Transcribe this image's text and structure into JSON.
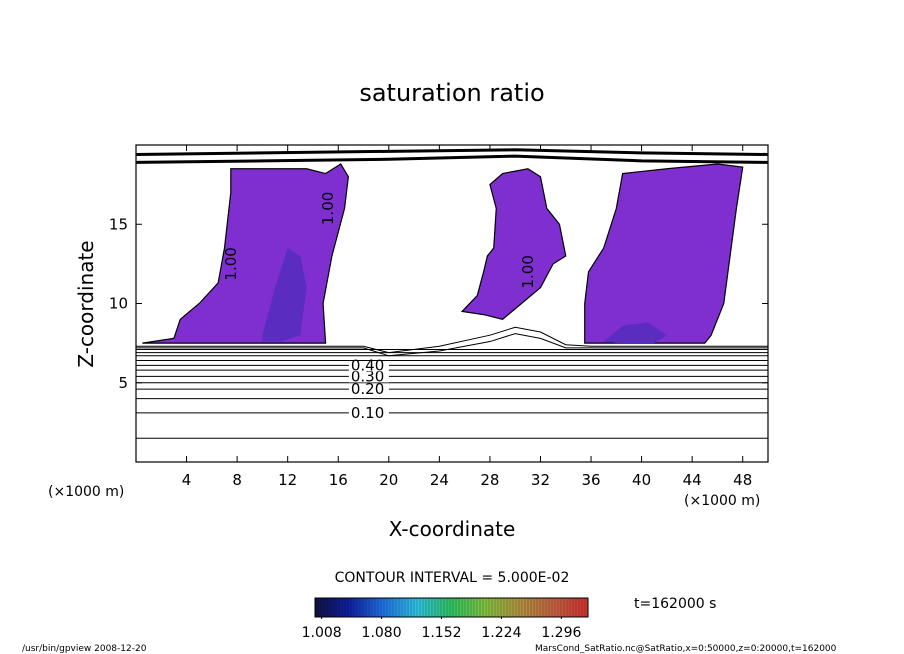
{
  "chart_data": {
    "type": "contour",
    "title": "saturation ratio",
    "xlabel": "X-coordinate",
    "ylabel": "Z-coordinate",
    "x_unit": "(×1000 m)",
    "xlim": [
      0,
      50
    ],
    "ylim": [
      0,
      20
    ],
    "xticks": [
      4,
      8,
      12,
      16,
      20,
      24,
      28,
      32,
      36,
      40,
      44,
      48
    ],
    "yticks": [
      5,
      10,
      15
    ],
    "regions": [
      {
        "color": "#7f2fd0",
        "x": [
          0.5,
          3,
          3.5,
          5,
          6.5,
          7,
          7.5,
          7.5,
          11,
          13.5,
          15,
          16.2,
          16.8,
          16.5,
          15.5,
          14.8,
          15,
          9
        ],
        "z": [
          7.5,
          7.8,
          9,
          10,
          11.3,
          13.5,
          17,
          18.5,
          18.5,
          18.5,
          18.2,
          18.8,
          18,
          16,
          13,
          10,
          7.5,
          7.5
        ]
      },
      {
        "color": "#7f2fd0",
        "x": [
          25.8,
          27,
          27.5,
          27.8,
          28.3,
          28.5,
          28,
          29,
          31,
          32,
          32.5,
          33.5,
          34,
          33,
          32,
          30.5,
          29,
          27.5
        ],
        "z": [
          9.5,
          10.5,
          12,
          13,
          13.5,
          16,
          17.5,
          18.2,
          18.5,
          18,
          16,
          15,
          13,
          12.5,
          11,
          10,
          9,
          9.3
        ]
      },
      {
        "color": "#7f2fd0",
        "x": [
          35.5,
          35.5,
          35.8,
          37,
          38,
          38.5,
          42,
          46,
          48,
          47.5,
          47,
          46.5,
          45.5,
          45
        ],
        "z": [
          7.5,
          10,
          12,
          13.5,
          16,
          18.2,
          18.5,
          18.8,
          18.6,
          16,
          13,
          10,
          8,
          7.5
        ]
      },
      {
        "color": "#5a2cc0",
        "x": [
          10,
          11,
          12,
          13,
          13.5,
          13,
          11.5,
          10
        ],
        "z": [
          8,
          11,
          13.5,
          13,
          11,
          8,
          7.6,
          7.6
        ]
      },
      {
        "color": "#5a2cc0",
        "x": [
          37,
          38.5,
          40.5,
          42,
          41,
          38
        ],
        "z": [
          7.6,
          8.6,
          8.8,
          8,
          7.5,
          7.5
        ]
      }
    ],
    "contours": [
      {
        "level": 0.05,
        "x": [
          0,
          50
        ],
        "z": [
          1.5,
          1.5
        ]
      },
      {
        "level": 0.1,
        "label": "0.10",
        "x": [
          0,
          50
        ],
        "z": [
          3.1,
          3.1
        ]
      },
      {
        "level": 0.15,
        "x": [
          0,
          50
        ],
        "z": [
          4.0,
          4.0
        ]
      },
      {
        "level": 0.2,
        "label": "0.20",
        "x": [
          0,
          50
        ],
        "z": [
          4.6,
          4.6
        ]
      },
      {
        "level": 0.25,
        "x": [
          0,
          50
        ],
        "z": [
          5.0,
          5.0
        ]
      },
      {
        "level": 0.3,
        "label": "0.30",
        "x": [
          0,
          50
        ],
        "z": [
          5.4,
          5.4
        ]
      },
      {
        "level": 0.35,
        "x": [
          0,
          50
        ],
        "z": [
          5.8,
          5.8
        ]
      },
      {
        "level": 0.4,
        "label": "0.40",
        "x": [
          0,
          50
        ],
        "z": [
          6.1,
          6.1
        ]
      },
      {
        "level": 0.45,
        "x": [
          0,
          50
        ],
        "z": [
          6.4,
          6.4
        ]
      },
      {
        "level": 0.5,
        "x": [
          0,
          50
        ],
        "z": [
          6.7,
          6.7
        ]
      },
      {
        "level": 0.6,
        "x": [
          0,
          50
        ],
        "z": [
          6.9,
          6.9
        ]
      },
      {
        "level": 0.7,
        "x": [
          0,
          50
        ],
        "z": [
          7.1,
          7.1
        ]
      },
      {
        "level": 0.8,
        "x": [
          0,
          18,
          20,
          24,
          28,
          30,
          32,
          34,
          36,
          50
        ],
        "z": [
          7.2,
          7.2,
          6.7,
          7.0,
          7.6,
          8.1,
          7.8,
          7.2,
          7.2,
          7.2
        ]
      },
      {
        "level": 0.9,
        "x": [
          0,
          18,
          20,
          24,
          28,
          30,
          32,
          34,
          36,
          50
        ],
        "z": [
          7.3,
          7.3,
          6.9,
          7.3,
          8.0,
          8.5,
          8.2,
          7.4,
          7.3,
          7.3
        ]
      },
      {
        "level": 1,
        "x": [
          0,
          10,
          20,
          30,
          40,
          50
        ],
        "z": [
          18.9,
          19.0,
          19.1,
          19.3,
          19.0,
          18.9
        ]
      },
      {
        "level": 1,
        "x": [
          0,
          10,
          20,
          30,
          40,
          50
        ],
        "z": [
          19.4,
          19.5,
          19.6,
          19.7,
          19.5,
          19.4
        ]
      }
    ],
    "region_label": "1.00",
    "contour_interval": "CONTOUR INTERVAL = 5.000E-02",
    "time": "t=162000 s",
    "colorbar": {
      "lim": [
        1.0,
        1.328
      ],
      "ticks": [
        1.008,
        {
          "value": 1.08,
          "label": "1.080"
        },
        1.152,
        1.224,
        1.296
      ],
      "colors": [
        "#101040",
        "#1020a0",
        "#2070e0",
        "#30c0e0",
        "#30c060",
        "#80c040",
        "#b09040",
        "#c06040",
        "#d03030"
      ]
    },
    "footer_left": "/usr/bin/gpview  2008-12-20",
    "footer_right": "MarsCond_SatRatio.nc@SatRatio,x=0:50000,z=0:20000,t=162000"
  }
}
